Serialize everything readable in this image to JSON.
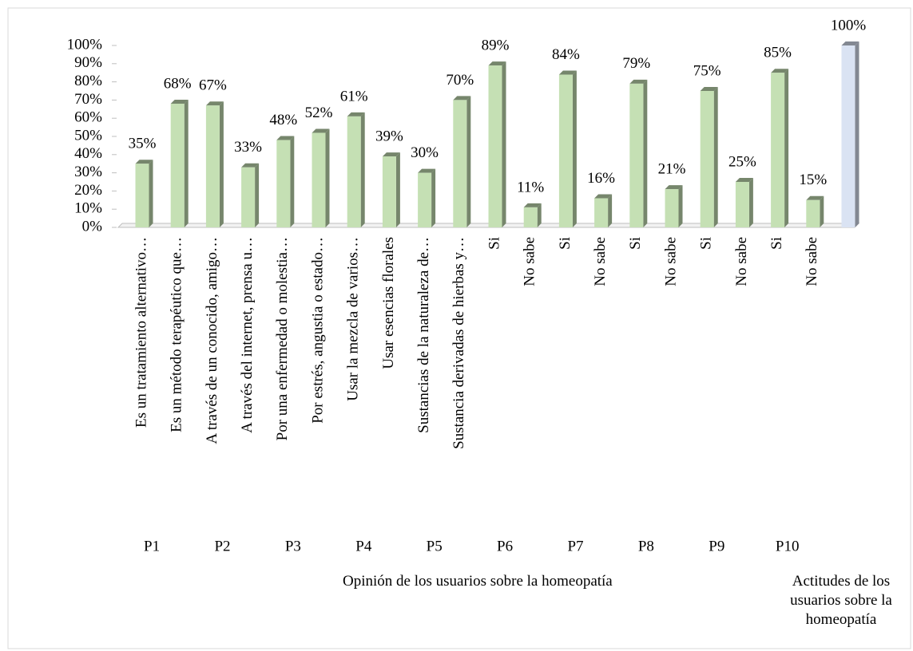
{
  "chart_data": {
    "type": "bar",
    "categories": [
      "Es un tratamiento alternativo…",
      "Es un método terapéutico que…",
      "A través de un conocido, amigo…",
      "A través del internet, prensa u…",
      "Por una enfermedad o molestia…",
      "Por estrés, angustia o estado…",
      "Usar la mezcla de varios…",
      "Usar esencias florales",
      "Sustancias de la naturaleza de…",
      "Sustancia derivadas de hierbas y…",
      "Si",
      "No sabe",
      "Si",
      "No sabe",
      "Si",
      "No sabe",
      "Si",
      "No sabe",
      "Si",
      "No sabe",
      null
    ],
    "values": [
      35,
      68,
      67,
      33,
      48,
      52,
      61,
      39,
      30,
      70,
      89,
      11,
      84,
      16,
      79,
      21,
      75,
      25,
      85,
      15,
      100
    ],
    "value_labels": [
      "35%",
      "68%",
      "67%",
      "33%",
      "48%",
      "52%",
      "61%",
      "39%",
      "30%",
      "70%",
      "89%",
      "11%",
      "84%",
      "16%",
      "79%",
      "21%",
      "75%",
      "25%",
      "85%",
      "15%",
      "100%"
    ],
    "colors": [
      "#c5e0b4",
      "#c5e0b4",
      "#c5e0b4",
      "#c5e0b4",
      "#c5e0b4",
      "#c5e0b4",
      "#c5e0b4",
      "#c5e0b4",
      "#c5e0b4",
      "#c5e0b4",
      "#c5e0b4",
      "#c5e0b4",
      "#c5e0b4",
      "#c5e0b4",
      "#c5e0b4",
      "#c5e0b4",
      "#c5e0b4",
      "#c5e0b4",
      "#c5e0b4",
      "#c5e0b4",
      "#dae3f3"
    ],
    "groups": [
      "P1",
      "P2",
      "P3",
      "P4",
      "P5",
      "P6",
      "P7",
      "P8",
      "P9",
      "P10"
    ],
    "supergroups": [
      "Opinión  de los usuarios sobre la homeopatía",
      "Actitudes de los usuarios sobre la homeopatía"
    ],
    "ylim": [
      0,
      100
    ],
    "yticks": [
      {
        "value": 0,
        "label": "0%"
      },
      {
        "value": 10,
        "label": "10%"
      },
      {
        "value": 20,
        "label": "20%"
      },
      {
        "value": 30,
        "label": "30%"
      },
      {
        "value": 40,
        "label": "40%"
      },
      {
        "value": 50,
        "label": "50%"
      },
      {
        "value": 60,
        "label": "60%"
      },
      {
        "value": 70,
        "label": "70%"
      },
      {
        "value": 80,
        "label": "80%"
      },
      {
        "value": 90,
        "label": "90%"
      },
      {
        "value": 100,
        "label": "100%"
      }
    ],
    "grid": false
  }
}
